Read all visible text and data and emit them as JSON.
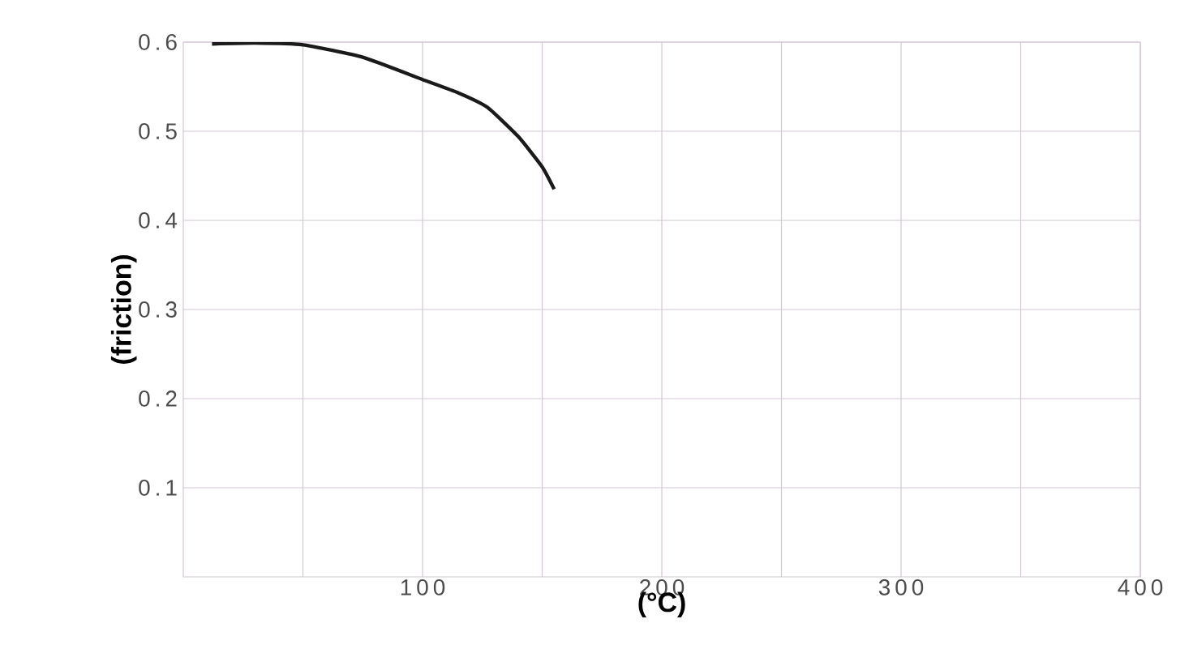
{
  "chart_data": {
    "type": "line",
    "xlabel": "(°C)",
    "ylabel": "(friction)",
    "x": [
      12,
      30,
      50,
      75,
      100,
      115,
      127,
      140,
      150,
      155
    ],
    "series": [
      {
        "color": "#1a1a1a",
        "values": [
          0.598,
          0.599,
          0.597,
          0.583,
          0.558,
          0.543,
          0.527,
          0.494,
          0.46,
          0.435
        ]
      }
    ],
    "xlim": [
      0,
      400
    ],
    "xticks": [
      {
        "value": 50,
        "label": null
      },
      100,
      {
        "value": 150,
        "label": null
      },
      200,
      {
        "value": 250,
        "label": null
      },
      300,
      {
        "value": 350,
        "label": null
      },
      400
    ],
    "ylim": [
      0,
      0.6
    ],
    "yticks": [
      0.1,
      0.2,
      0.3,
      0.4,
      0.5,
      0.6
    ],
    "grid": true,
    "marker": "none",
    "line_style": "solid"
  }
}
